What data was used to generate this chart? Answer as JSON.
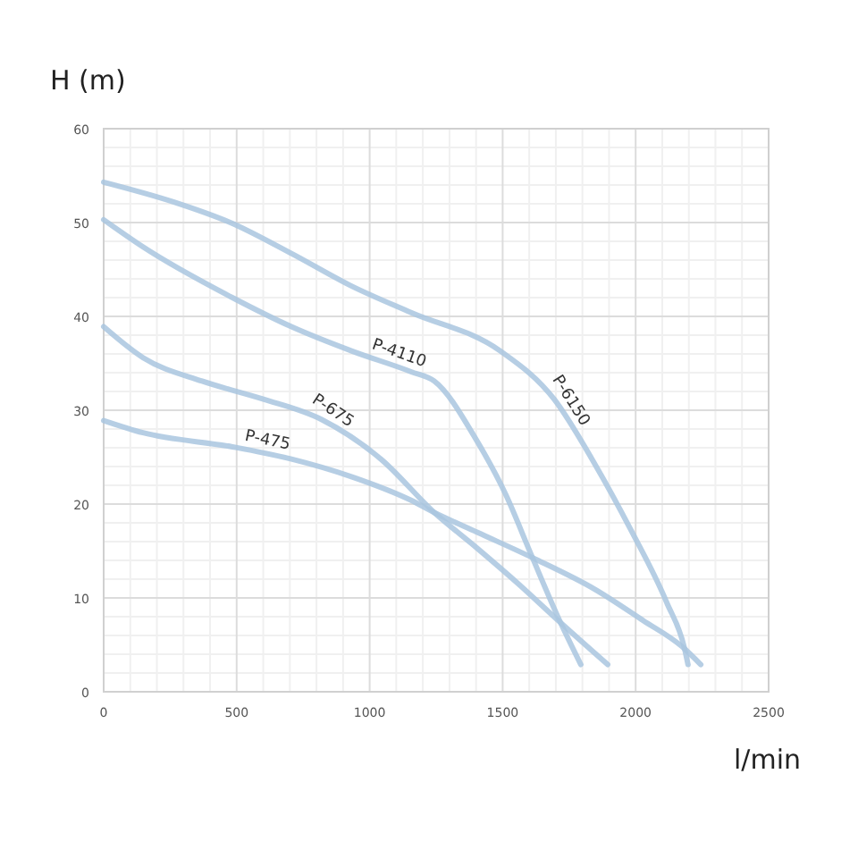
{
  "chart_data": {
    "type": "line",
    "xlabel": "l/min",
    "ylabel": "H (m)",
    "xlim": [
      0,
      2500
    ],
    "ylim": [
      0,
      60
    ],
    "xticks": [
      0,
      500,
      1000,
      1500,
      2000,
      2500
    ],
    "yticks": [
      0,
      10,
      20,
      30,
      40,
      50,
      60
    ],
    "grid": true,
    "marker": "none",
    "line_style": "solid",
    "series": [
      {
        "name": "P-475",
        "color": "#a9c5df",
        "x": [
          0,
          148,
          484,
          706,
          934,
          1156,
          1243,
          1404,
          1626,
          1848,
          2028,
          2175,
          2245
        ],
        "values": [
          28.9,
          27.6,
          26.1,
          24.8,
          22.9,
          20.4,
          19.1,
          17,
          14.1,
          10.9,
          7.6,
          4.8,
          2.9
        ]
      },
      {
        "name": "P-675",
        "color": "#a9c5df",
        "x": [
          0,
          148,
          370,
          598,
          820,
          1042,
          1243,
          1404,
          1559,
          1693,
          1895
        ],
        "values": [
          38.9,
          35.6,
          33.1,
          31.2,
          29,
          24.8,
          19.1,
          15.3,
          11.5,
          8,
          2.9
        ]
      },
      {
        "name": "P-4110",
        "color": "#a9c5df",
        "x": [
          0,
          148,
          484,
          706,
          934,
          1156,
          1243,
          1404,
          1512,
          1606,
          1714,
          1794
        ],
        "values": [
          50.3,
          47.4,
          42,
          38.9,
          36.3,
          34.1,
          33.1,
          26.7,
          21,
          14.7,
          7.6,
          2.9
        ]
      },
      {
        "name": "P-6150",
        "color": "#a9c5df",
        "x": [
          0,
          262,
          484,
          706,
          934,
          1156,
          1492,
          1693,
          1848,
          1983,
          2117,
          2184,
          2197
        ],
        "values": [
          54.3,
          52.2,
          49.9,
          46.7,
          43.2,
          40.4,
          36.3,
          31.2,
          24.2,
          17.2,
          9.5,
          4.6,
          2.9
        ]
      }
    ]
  }
}
